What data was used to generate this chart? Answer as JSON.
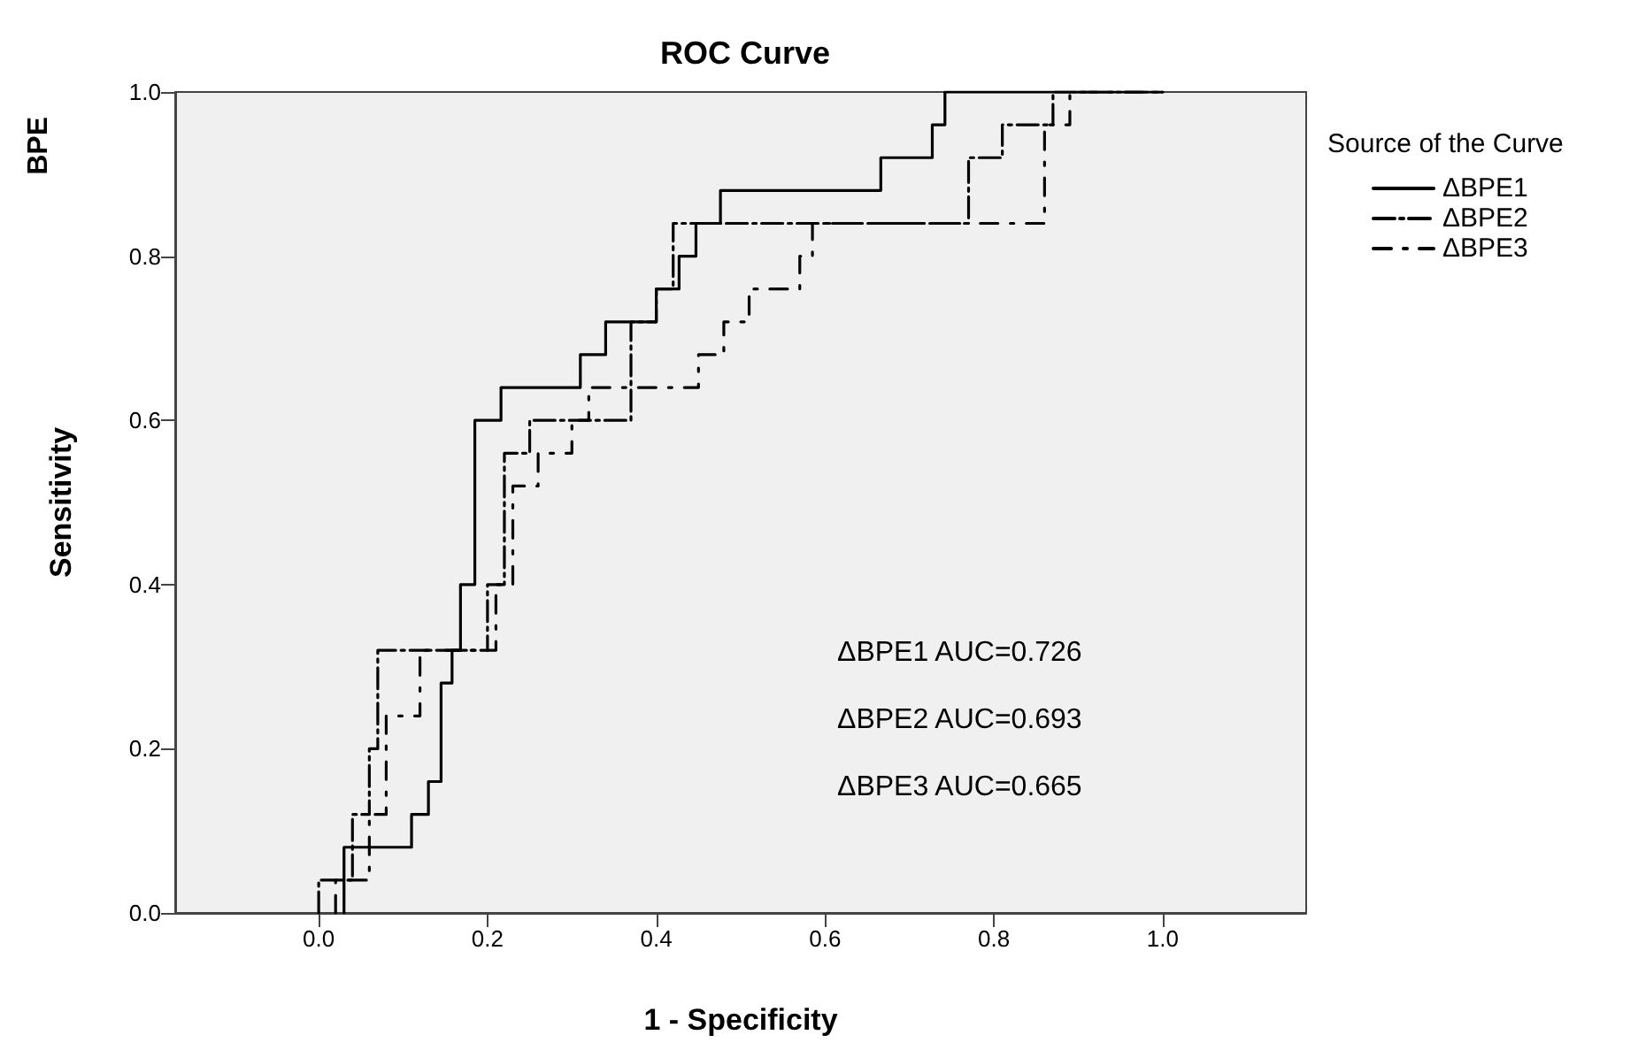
{
  "chart_data": {
    "type": "step",
    "title": "ROC Curve",
    "xlabel": "1 - Specificity",
    "ylabel": "Sensitivity",
    "legend_title": "Source of the Curve",
    "legend": "right",
    "annotations": [
      "BPE",
      "ΔBPE1 AUC=0.726",
      "ΔBPE2 AUC=0.693",
      "ΔBPE3 AUC=0.665"
    ],
    "xlim": [
      -0.17,
      1.17
    ],
    "ylim": [
      0,
      1
    ],
    "xticks": [
      {
        "value": 0,
        "label": "0.0"
      },
      {
        "value": 0.2,
        "label": "0.2"
      },
      {
        "value": 0.4,
        "label": "0.4"
      },
      {
        "value": 0.6,
        "label": "0.6"
      },
      {
        "value": 0.8,
        "label": "0.8"
      },
      {
        "value": 1,
        "label": "1.0"
      }
    ],
    "yticks": [
      {
        "value": 0,
        "label": "0.0"
      },
      {
        "value": 0.2,
        "label": "0.2"
      },
      {
        "value": 0.4,
        "label": "0.4"
      },
      {
        "value": 0.6,
        "label": "0.6"
      },
      {
        "value": 0.8,
        "label": "0.8"
      },
      {
        "value": 1,
        "label": "1.0"
      }
    ],
    "grid": false,
    "marker": "none",
    "series": [
      {
        "name": "ΔBPE1",
        "color": "#000000",
        "line_style": "solid",
        "x": [
          0.03,
          0.03,
          0.11,
          0.11,
          0.13,
          0.13,
          0.145,
          0.145,
          0.158,
          0.158,
          0.168,
          0.168,
          0.185,
          0.185,
          0.216,
          0.216,
          0.31,
          0.31,
          0.34,
          0.34,
          0.4,
          0.4,
          0.427,
          0.427,
          0.447,
          0.447,
          0.476,
          0.476,
          0.666,
          0.666,
          0.727,
          0.727,
          0.742,
          0.742,
          1
        ],
        "values": [
          0,
          0.08,
          0.08,
          0.12,
          0.12,
          0.16,
          0.16,
          0.28,
          0.28,
          0.32,
          0.32,
          0.4,
          0.4,
          0.6,
          0.6,
          0.64,
          0.64,
          0.68,
          0.68,
          0.72,
          0.72,
          0.76,
          0.76,
          0.8,
          0.8,
          0.84,
          0.84,
          0.88,
          0.88,
          0.92,
          0.92,
          0.96,
          0.96,
          1,
          1
        ]
      },
      {
        "name": "ΔBPE2",
        "color": "#000000",
        "line_style": "dashed",
        "x": [
          0,
          0,
          0.04,
          0.04,
          0.06,
          0.06,
          0.07,
          0.07,
          0.2,
          0.2,
          0.22,
          0.22,
          0.25,
          0.25,
          0.37,
          0.37,
          0.4,
          0.4,
          0.42,
          0.42,
          0.77,
          0.77,
          0.81,
          0.81,
          0.87,
          0.87,
          1
        ],
        "values": [
          0,
          0.04,
          0.04,
          0.12,
          0.12,
          0.2,
          0.2,
          0.32,
          0.32,
          0.4,
          0.4,
          0.56,
          0.56,
          0.6,
          0.6,
          0.72,
          0.72,
          0.76,
          0.76,
          0.84,
          0.84,
          0.92,
          0.92,
          0.96,
          0.96,
          1,
          1
        ]
      },
      {
        "name": "ΔBPE3",
        "color": "#000000",
        "line_style": "dashed",
        "x": [
          0.02,
          0.02,
          0.06,
          0.06,
          0.08,
          0.08,
          0.12,
          0.12,
          0.21,
          0.21,
          0.23,
          0.23,
          0.26,
          0.26,
          0.3,
          0.3,
          0.32,
          0.32,
          0.45,
          0.45,
          0.48,
          0.48,
          0.51,
          0.51,
          0.57,
          0.57,
          0.585,
          0.585,
          0.86,
          0.86,
          0.89,
          0.89,
          1
        ],
        "values": [
          0,
          0.04,
          0.04,
          0.12,
          0.12,
          0.24,
          0.24,
          0.32,
          0.32,
          0.4,
          0.4,
          0.52,
          0.52,
          0.56,
          0.56,
          0.6,
          0.6,
          0.64,
          0.64,
          0.68,
          0.68,
          0.72,
          0.72,
          0.76,
          0.76,
          0.8,
          0.8,
          0.84,
          0.84,
          0.96,
          0.96,
          1,
          1
        ]
      }
    ]
  }
}
